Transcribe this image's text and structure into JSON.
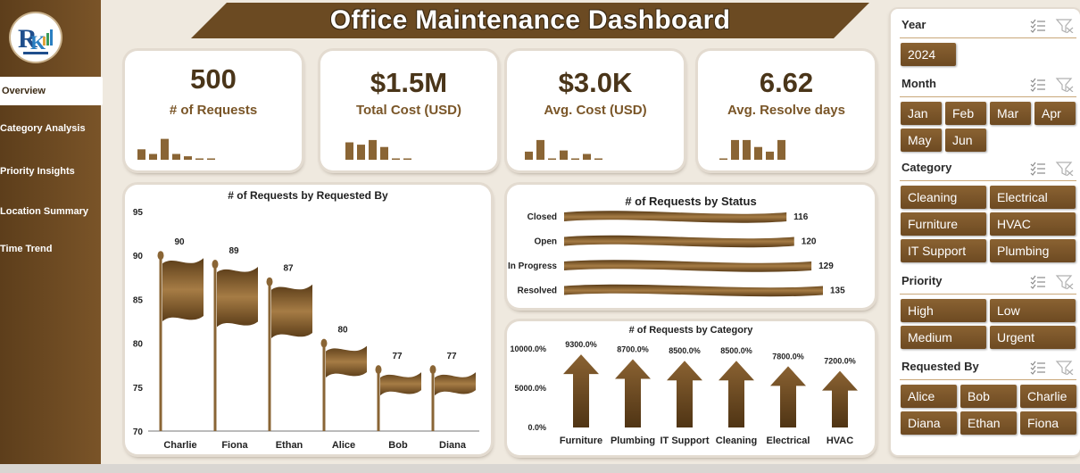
{
  "title": "Office Maintenance Dashboard",
  "nav": [
    {
      "label": "Overview",
      "active": true
    },
    {
      "label": "Category Analysis"
    },
    {
      "label": "Priority Insights"
    },
    {
      "label": "Location Summary"
    },
    {
      "label": "Time Trend"
    }
  ],
  "kpis": [
    {
      "value": "500",
      "label": "# of Requests"
    },
    {
      "value": "$1.5M",
      "label": "Total Cost (USD)"
    },
    {
      "value": "$3.0K",
      "label": "Avg. Cost (USD)"
    },
    {
      "value": "6.62",
      "label": "Avg. Resolve days"
    }
  ],
  "kpi_sparklines": [
    [
      0.45,
      0.25,
      0.9,
      0.25,
      0.15,
      0.05,
      0.05
    ],
    [
      0.75,
      0.65,
      0.85,
      0.55,
      0.05,
      0.05
    ],
    [
      0.35,
      0.85,
      0.05,
      0.4,
      0.05,
      0.25,
      0.05
    ],
    [
      0.05,
      0.85,
      0.85,
      0.55,
      0.35,
      0.85
    ]
  ],
  "chart_data": [
    {
      "type": "bar",
      "title": "# of Requests by Requested By",
      "categories": [
        "Charlie",
        "Fiona",
        "Ethan",
        "Alice",
        "Bob",
        "Diana"
      ],
      "values": [
        90,
        89,
        87,
        80,
        77,
        77
      ],
      "yticks": [
        "95",
        "90",
        "85",
        "80",
        "75",
        "70"
      ],
      "ylim": [
        70,
        95
      ]
    },
    {
      "type": "bar",
      "orientation": "horizontal",
      "title": "# of Requests by Status",
      "categories": [
        "Closed",
        "Open",
        "In Progress",
        "Resolved"
      ],
      "values": [
        116,
        120,
        129,
        135
      ]
    },
    {
      "type": "bar",
      "title": "# of Requests by Category",
      "categories": [
        "Furniture",
        "Plumbing",
        "IT Support",
        "Cleaning",
        "Electrical",
        "HVAC"
      ],
      "values": [
        93,
        87,
        85,
        85,
        78,
        72
      ],
      "value_labels": [
        "9300.0%",
        "8700.0%",
        "8500.0%",
        "8500.0%",
        "7800.0%",
        "7200.0%"
      ],
      "yticks": [
        "10000.0%",
        "5000.0%",
        "0.0%"
      ],
      "ylim": [
        0,
        100
      ]
    }
  ],
  "slicers": [
    {
      "label": "Year",
      "options": [
        "2024"
      ]
    },
    {
      "label": "Month",
      "options": [
        "Jan",
        "Feb",
        "Mar",
        "Apr",
        "May",
        "Jun"
      ]
    },
    {
      "label": "Category",
      "options": [
        "Cleaning",
        "Electrical",
        "Furniture",
        "HVAC",
        "IT Support",
        "Plumbing"
      ]
    },
    {
      "label": "Priority",
      "options": [
        "High",
        "Low",
        "Medium",
        "Urgent"
      ]
    },
    {
      "label": "Requested By",
      "options": [
        "Alice",
        "Bob",
        "Charlie",
        "Diana",
        "Ethan",
        "Fiona"
      ]
    }
  ],
  "colors": {
    "brown_dark": "#5d3e1b",
    "brown": "#7a5428",
    "brown_light": "#a07a48",
    "bg": "#efe9df"
  }
}
